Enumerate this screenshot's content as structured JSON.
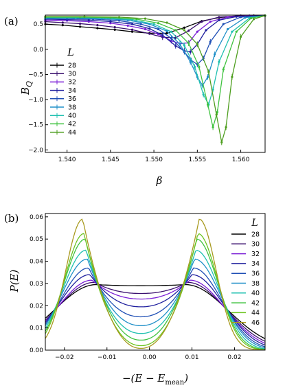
{
  "chart_data": [
    {
      "panel": "(a)",
      "type": "line",
      "xlabel": "β",
      "ylabel_main": "B",
      "ylabel_sub": "Q",
      "xlim": [
        1.5375,
        1.5628
      ],
      "ylim": [
        -2.05,
        0.68
      ],
      "xticks": [
        1.54,
        1.545,
        1.55,
        1.555,
        1.56
      ],
      "xtick_labels": [
        "1.540",
        "1.545",
        "1.550",
        "1.555",
        "1.560"
      ],
      "yticks": [
        0.5,
        0.0,
        -0.5,
        -1.0,
        -1.5,
        -2.0
      ],
      "ytick_labels": [
        "0.5",
        "0.0",
        "−0.5",
        "−1.0",
        "−1.5",
        "−2.0"
      ],
      "error_bars": true,
      "legend_title": "L",
      "legend_position": "left",
      "series": [
        {
          "name": "28",
          "color": "#000000",
          "x": [
            1.5375,
            1.5395,
            1.5415,
            1.5435,
            1.5455,
            1.5475,
            1.5495,
            1.5515,
            1.5535,
            1.5555,
            1.5575,
            1.5595,
            1.5615,
            1.5628
          ],
          "y": [
            0.5,
            0.48,
            0.45,
            0.42,
            0.39,
            0.35,
            0.32,
            0.32,
            0.43,
            0.56,
            0.63,
            0.66,
            0.67,
            0.67
          ]
        },
        {
          "name": "30",
          "color": "#3a0f6e",
          "x": [
            1.5375,
            1.5395,
            1.5415,
            1.5435,
            1.5455,
            1.5475,
            1.5495,
            1.551,
            1.5525,
            1.554,
            1.5555,
            1.5575,
            1.56,
            1.5628
          ],
          "y": [
            0.55,
            0.53,
            0.51,
            0.48,
            0.44,
            0.39,
            0.31,
            0.24,
            0.23,
            0.37,
            0.55,
            0.64,
            0.67,
            0.67
          ]
        },
        {
          "name": "32",
          "color": "#7b1fd6",
          "x": [
            1.5375,
            1.54,
            1.5425,
            1.545,
            1.547,
            1.549,
            1.5505,
            1.552,
            1.553,
            1.554,
            1.555,
            1.5565,
            1.5585,
            1.561,
            1.5628
          ],
          "y": [
            0.58,
            0.57,
            0.55,
            0.52,
            0.47,
            0.4,
            0.3,
            0.17,
            0.11,
            0.13,
            0.35,
            0.55,
            0.64,
            0.67,
            0.67
          ]
        },
        {
          "name": "34",
          "color": "#1f1f9e",
          "x": [
            1.5375,
            1.54,
            1.5425,
            1.545,
            1.5475,
            1.5495,
            1.551,
            1.5525,
            1.5535,
            1.5542,
            1.555,
            1.556,
            1.5575,
            1.5595,
            1.5628
          ],
          "y": [
            0.6,
            0.59,
            0.58,
            0.55,
            0.5,
            0.41,
            0.28,
            0.07,
            -0.03,
            -0.05,
            0.1,
            0.38,
            0.58,
            0.65,
            0.67
          ]
        },
        {
          "name": "36",
          "color": "#1f4fb5",
          "x": [
            1.5375,
            1.54,
            1.543,
            1.546,
            1.5485,
            1.5505,
            1.552,
            1.5535,
            1.5543,
            1.555,
            1.5557,
            1.5565,
            1.558,
            1.56,
            1.5628
          ],
          "y": [
            0.61,
            0.61,
            0.6,
            0.57,
            0.5,
            0.4,
            0.22,
            -0.05,
            -0.22,
            -0.3,
            -0.18,
            0.15,
            0.5,
            0.64,
            0.67
          ]
        },
        {
          "name": "38",
          "color": "#1f8fc8",
          "x": [
            1.5375,
            1.541,
            1.544,
            1.547,
            1.5495,
            1.5515,
            1.553,
            1.5542,
            1.555,
            1.5556,
            1.5562,
            1.557,
            1.5585,
            1.5605,
            1.5628
          ],
          "y": [
            0.62,
            0.62,
            0.61,
            0.58,
            0.5,
            0.36,
            0.1,
            -0.25,
            -0.55,
            -0.72,
            -0.55,
            -0.1,
            0.4,
            0.63,
            0.67
          ]
        },
        {
          "name": "40",
          "color": "#1fc0b0",
          "x": [
            1.5375,
            1.541,
            1.5445,
            1.5475,
            1.55,
            1.552,
            1.5535,
            1.5547,
            1.5557,
            1.5563,
            1.5568,
            1.5575,
            1.559,
            1.561,
            1.5628
          ],
          "y": [
            0.63,
            0.63,
            0.62,
            0.59,
            0.5,
            0.35,
            0.08,
            -0.35,
            -0.9,
            -1.1,
            -0.8,
            -0.25,
            0.35,
            0.62,
            0.67
          ]
        },
        {
          "name": "42",
          "color": "#3fc23f",
          "x": [
            1.5375,
            1.5415,
            1.545,
            1.548,
            1.5505,
            1.5525,
            1.554,
            1.5552,
            1.5562,
            1.5568,
            1.5573,
            1.558,
            1.5595,
            1.5612,
            1.5628
          ],
          "y": [
            0.64,
            0.64,
            0.63,
            0.6,
            0.52,
            0.38,
            0.12,
            -0.35,
            -1.1,
            -1.55,
            -1.25,
            -0.4,
            0.35,
            0.62,
            0.67
          ]
        },
        {
          "name": "44",
          "color": "#4e9e1f",
          "x": [
            1.5375,
            1.542,
            1.546,
            1.549,
            1.5515,
            1.5535,
            1.555,
            1.5563,
            1.5572,
            1.5578,
            1.5583,
            1.559,
            1.56,
            1.5615,
            1.5628
          ],
          "y": [
            0.65,
            0.65,
            0.64,
            0.61,
            0.53,
            0.38,
            0.1,
            -0.45,
            -1.3,
            -1.85,
            -1.55,
            -0.55,
            0.25,
            0.6,
            0.67
          ]
        }
      ]
    },
    {
      "panel": "(b)",
      "type": "line",
      "xlabel_main": "−(E − E",
      "xlabel_sub": "mean",
      "xlabel_end": ")",
      "ylabel": "P(E)",
      "xlim": [
        -0.0245,
        0.0272
      ],
      "ylim": [
        0.0,
        0.0615
      ],
      "xticks": [
        -0.02,
        -0.01,
        0.0,
        0.01,
        0.02
      ],
      "xtick_labels": [
        "−0.02",
        "−0.01",
        "0.00",
        "0.01",
        "0.02"
      ],
      "yticks": [
        0.0,
        0.01,
        0.02,
        0.03,
        0.04,
        0.05,
        0.06
      ],
      "ytick_labels": [
        "0.00",
        "0.01",
        "0.02",
        "0.03",
        "0.04",
        "0.05",
        "0.06"
      ],
      "legend_title": "L",
      "legend_position": "right",
      "series": [
        {
          "name": "28",
          "color": "#000000",
          "peak": 0.0295,
          "dip": 0.029,
          "peak_pos": 0.0105,
          "width": 0.01
        },
        {
          "name": "30",
          "color": "#3a0f6e",
          "peak": 0.0305,
          "dip": 0.0255,
          "peak_pos": 0.011,
          "width": 0.009
        },
        {
          "name": "32",
          "color": "#7b1fd6",
          "peak": 0.0315,
          "dip": 0.023,
          "peak_pos": 0.0115,
          "width": 0.0082
        },
        {
          "name": "34",
          "color": "#1f1f9e",
          "peak": 0.034,
          "dip": 0.0195,
          "peak_pos": 0.012,
          "width": 0.0074
        },
        {
          "name": "36",
          "color": "#1f4fb5",
          "peak": 0.037,
          "dip": 0.015,
          "peak_pos": 0.0123,
          "width": 0.0067
        },
        {
          "name": "38",
          "color": "#1f8fc8",
          "peak": 0.041,
          "dip": 0.011,
          "peak_pos": 0.0126,
          "width": 0.0061
        },
        {
          "name": "40",
          "color": "#1fc0b0",
          "peak": 0.045,
          "dip": 0.0075,
          "peak_pos": 0.0129,
          "width": 0.0055
        },
        {
          "name": "42",
          "color": "#3fc23f",
          "peak": 0.05,
          "dip": 0.0045,
          "peak_pos": 0.0131,
          "width": 0.005
        },
        {
          "name": "44",
          "color": "#6cc41f",
          "peak": 0.0525,
          "dip": 0.002,
          "peak_pos": 0.0134,
          "width": 0.0046
        },
        {
          "name": "46",
          "color": "#a89a1f",
          "peak": 0.059,
          "dip": 0.0008,
          "peak_pos": 0.0137,
          "width": 0.004
        }
      ]
    }
  ]
}
